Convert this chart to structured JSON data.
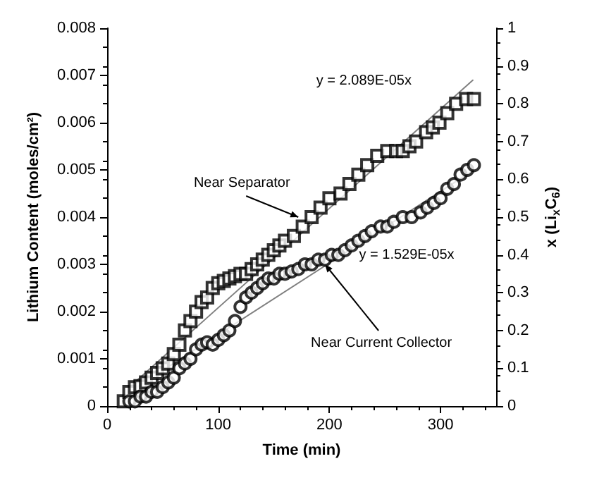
{
  "chart_data": {
    "type": "scatter",
    "xlabel": "Time (min)",
    "ylabel": "Lithium Content (moles/cm²)",
    "y2label": "x (Li$_{x}$C$_{6}$)",
    "xlim": [
      0,
      350
    ],
    "xticks": [
      0,
      100,
      200,
      300
    ],
    "ylim": [
      0,
      0.008
    ],
    "yticks": [
      0,
      0.001,
      0.002,
      0.003,
      0.004,
      0.005,
      0.006,
      0.007,
      0.008
    ],
    "y2lim": [
      0,
      1
    ],
    "y2ticks": [
      0,
      0.1,
      0.2,
      0.3,
      0.4,
      0.5,
      0.6,
      0.7,
      0.8,
      0.9,
      1
    ],
    "grid": false,
    "series": [
      {
        "type": "scatter",
        "marker": "square",
        "color": "#000000",
        "x": [
          15,
          20,
          25,
          30,
          35,
          40,
          45,
          50,
          55,
          60,
          65,
          70,
          75,
          80,
          85,
          90,
          95,
          100,
          105,
          110,
          115,
          120,
          125,
          130,
          135,
          140,
          145,
          150,
          155,
          160,
          168,
          176,
          184,
          192,
          200,
          210,
          218,
          226,
          234,
          243,
          252,
          260,
          266,
          272,
          278,
          287,
          293,
          299,
          306,
          314,
          323,
          330
        ],
        "values": [
          0.0001,
          0.0003,
          0.0004,
          0.00042,
          0.0005,
          0.0006,
          0.0007,
          0.0008,
          0.0009,
          0.0011,
          0.0013,
          0.0016,
          0.0018,
          0.002,
          0.0022,
          0.0023,
          0.0025,
          0.0026,
          0.00265,
          0.0027,
          0.00275,
          0.0028,
          0.0028,
          0.0029,
          0.003,
          0.0031,
          0.0032,
          0.0033,
          0.0034,
          0.0035,
          0.0036,
          0.0038,
          0.004,
          0.0042,
          0.0044,
          0.0045,
          0.0047,
          0.0049,
          0.0051,
          0.0053,
          0.0054,
          0.0054,
          0.0054,
          0.0055,
          0.0056,
          0.0058,
          0.0059,
          0.006,
          0.0062,
          0.0064,
          0.0065,
          0.0065
        ]
      },
      {
        "type": "scatter",
        "marker": "circle",
        "color": "#000000",
        "x": [
          20,
          25,
          30,
          35,
          40,
          45,
          50,
          55,
          60,
          65,
          70,
          75,
          80,
          85,
          90,
          95,
          100,
          105,
          110,
          115,
          120,
          125,
          130,
          135,
          140,
          145,
          150,
          155,
          160,
          166,
          172,
          178,
          184,
          190,
          196,
          202,
          208,
          214,
          220,
          226,
          232,
          238,
          246,
          252,
          258,
          266,
          274,
          282,
          288,
          294,
          300,
          306,
          312,
          318,
          324,
          330
        ],
        "values": [
          0.0001,
          0.0001,
          0.0002,
          0.0002,
          0.0003,
          0.0003,
          0.0004,
          0.0005,
          0.0006,
          0.0008,
          0.0009,
          0.001,
          0.0012,
          0.0013,
          0.00135,
          0.0013,
          0.0014,
          0.0015,
          0.0016,
          0.0018,
          0.0021,
          0.0023,
          0.0024,
          0.0025,
          0.0026,
          0.0027,
          0.0027,
          0.0028,
          0.0028,
          0.00285,
          0.0029,
          0.003,
          0.003,
          0.0031,
          0.0031,
          0.0032,
          0.0032,
          0.0033,
          0.0034,
          0.0035,
          0.0036,
          0.0037,
          0.0038,
          0.0038,
          0.0039,
          0.004,
          0.004,
          0.0041,
          0.0042,
          0.0043,
          0.0044,
          0.0046,
          0.0047,
          0.0049,
          0.005,
          0.0051
        ]
      },
      {
        "type": "line",
        "marker": "none",
        "color": "#808080",
        "x": [
          20,
          329
        ],
        "values": [
          0.0004,
          0.0069
        ]
      },
      {
        "type": "line",
        "marker": "none",
        "color": "#808080",
        "x": [
          20,
          330
        ],
        "values": [
          0.0003,
          0.005
        ]
      }
    ],
    "annotations": [
      {
        "text": "Near Separator",
        "x": 172,
        "y": 0.004
      },
      {
        "text": "Near Current Collector",
        "x": 196,
        "y": 0.003
      },
      "y = 2.089E-05x",
      "y = 1.529E-05x"
    ]
  }
}
